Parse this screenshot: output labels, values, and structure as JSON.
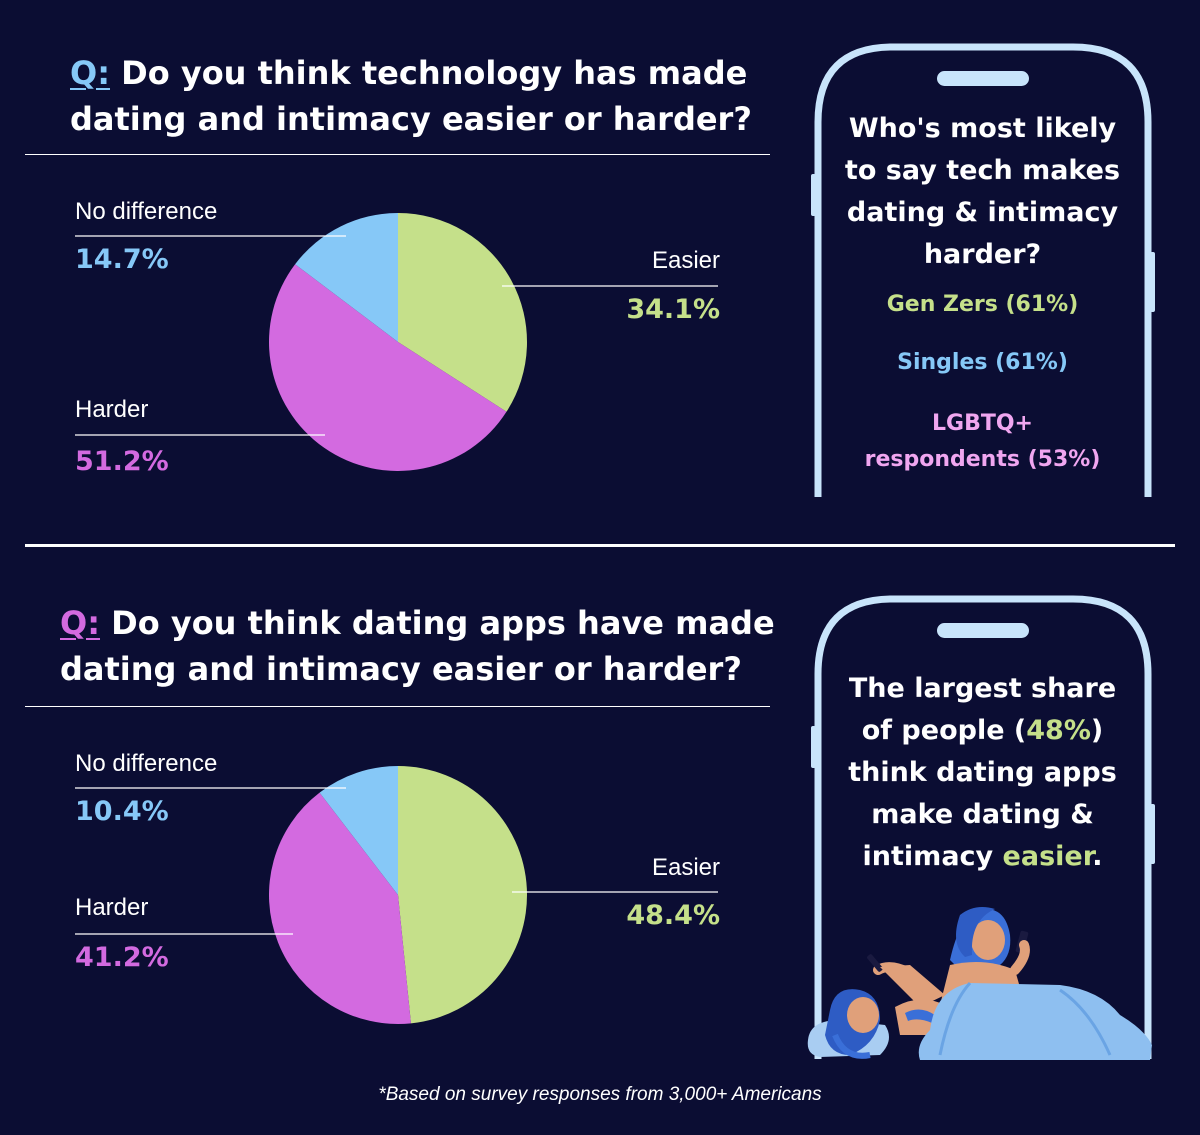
{
  "colors": {
    "background": "#0b0d33",
    "easier": "#c5e08a",
    "harder": "#d36ae0",
    "no_difference": "#86c8f7",
    "phone_outline": "#c8e4fb"
  },
  "chart_data": [
    {
      "type": "pie",
      "title_prefix": "Q:",
      "title": "Do you think technology has made dating and intimacy easier or harder?",
      "categories": [
        "Easier",
        "Harder",
        "No difference"
      ],
      "values": [
        34.1,
        51.2,
        14.7
      ],
      "value_labels": [
        "34.1%",
        "51.2%",
        "14.7%"
      ]
    },
    {
      "type": "pie",
      "title_prefix": "Q:",
      "title": "Do you think dating apps have made dating and intimacy easier or harder?",
      "categories": [
        "Easier",
        "Harder",
        "No difference"
      ],
      "values": [
        48.4,
        41.2,
        10.4
      ],
      "value_labels": [
        "48.4%",
        "41.2%",
        "10.4%"
      ]
    }
  ],
  "callout1": {
    "heading": "Who's most likely to say tech makes dating & intimacy harder?",
    "items": [
      "Gen Zers (61%)",
      "Singles (61%)",
      "LGBTQ+ respondents (53%)"
    ]
  },
  "callout2": {
    "part1": "The largest share of people (",
    "highlight1": "48%",
    "part2": ") think dating apps make dating & intimacy ",
    "highlight2": "easier",
    "part3": "."
  },
  "footnote": "*Based on survey responses from 3,000+ Americans"
}
